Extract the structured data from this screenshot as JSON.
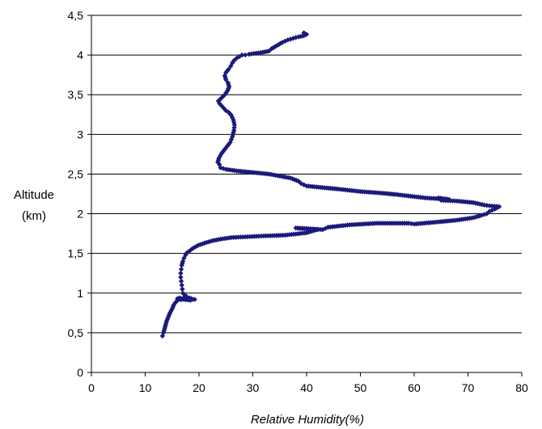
{
  "chart_data": {
    "type": "scatter",
    "title": "",
    "xlabel": "Relative Humidity(%)",
    "ylabel_lines": [
      "Altitude",
      "(km)"
    ],
    "xlim": [
      0,
      80
    ],
    "ylim": [
      0,
      4.5
    ],
    "xticks": [
      "0",
      "10",
      "20",
      "30",
      "40",
      "50",
      "60",
      "70",
      "80"
    ],
    "yticks": [
      "0",
      "0,5",
      "1",
      "1,5",
      "2",
      "2,5",
      "3",
      "3,5",
      "4",
      "4,5"
    ],
    "grid": "horizontal",
    "marker": "diamond",
    "color": "#1a1a7a",
    "series": [
      {
        "x": [
          13.2,
          13.4,
          13.6,
          13.8,
          14.0,
          14.3,
          14.6,
          15.0,
          15.3,
          15.6,
          15.9,
          16.1,
          16.3,
          16.4,
          16.5,
          16.6,
          16.7,
          16.8,
          17.0,
          17.2,
          17.5,
          17.8,
          18.2,
          18.6,
          19.2,
          16.0,
          17.2,
          18.4,
          17.0,
          16.9,
          16.8,
          16.7,
          16.6,
          16.6,
          16.7,
          16.8,
          17.0,
          17.2,
          17.5,
          17.8,
          18.2,
          18.6,
          19.0,
          19.8,
          21.0,
          22.5,
          24.0,
          26.0,
          29.0,
          32.0,
          36.0,
          40.0,
          42.0,
          38.0,
          43.0,
          44.0,
          48.0,
          53.0,
          59.0,
          60.0,
          65.0,
          68.0,
          71.0,
          72.5,
          73.5,
          74.0,
          75.0,
          75.8,
          74.0,
          73.0,
          71.0,
          68.0,
          65.0,
          64.5,
          66.5,
          62.0,
          57.0,
          54.0,
          50.0,
          46.0,
          43.0,
          40.0,
          39.0,
          38.5,
          37.0,
          33.0,
          30.0,
          27.0,
          25.0,
          24.0,
          23.8,
          23.5,
          23.7,
          24.2,
          25.0,
          25.8,
          26.2,
          26.5,
          26.6,
          26.4,
          26.0,
          25.5,
          25.0,
          24.6,
          24.2,
          23.8,
          23.6,
          24.2,
          24.8,
          25.3,
          25.6,
          25.4,
          25.0,
          24.8,
          25.0,
          25.5,
          25.9,
          26.2,
          26.5,
          27.0,
          27.5,
          28.0,
          28.6,
          29.3,
          30.2,
          31.5,
          33.0,
          33.5,
          34.5,
          35.5,
          36.5,
          37.5,
          38.5,
          39.3,
          40.0,
          39.5
        ],
        "y": [
          0.46,
          0.5,
          0.55,
          0.6,
          0.65,
          0.7,
          0.75,
          0.8,
          0.85,
          0.88,
          0.9,
          0.92,
          0.93,
          0.94,
          0.93,
          0.92,
          0.92,
          0.93,
          0.93,
          0.94,
          0.92,
          0.93,
          0.94,
          0.93,
          0.92,
          0.93,
          0.92,
          0.91,
          1.0,
          1.05,
          1.1,
          1.15,
          1.2,
          1.25,
          1.3,
          1.35,
          1.4,
          1.44,
          1.48,
          1.51,
          1.53,
          1.55,
          1.57,
          1.6,
          1.63,
          1.66,
          1.68,
          1.7,
          1.71,
          1.72,
          1.73,
          1.76,
          1.8,
          1.82,
          1.8,
          1.83,
          1.86,
          1.88,
          1.88,
          1.87,
          1.9,
          1.92,
          1.95,
          1.98,
          2.0,
          2.03,
          2.06,
          2.09,
          2.1,
          2.11,
          2.14,
          2.16,
          2.17,
          2.2,
          2.18,
          2.2,
          2.24,
          2.26,
          2.28,
          2.31,
          2.33,
          2.35,
          2.38,
          2.41,
          2.45,
          2.5,
          2.52,
          2.54,
          2.56,
          2.58,
          2.62,
          2.65,
          2.7,
          2.76,
          2.83,
          2.9,
          2.97,
          3.05,
          3.12,
          3.18,
          3.24,
          3.28,
          3.3,
          3.33,
          3.36,
          3.39,
          3.42,
          3.46,
          3.5,
          3.55,
          3.6,
          3.65,
          3.69,
          3.74,
          3.78,
          3.82,
          3.86,
          3.9,
          3.93,
          3.96,
          3.98,
          4.0,
          4.0,
          4.01,
          4.02,
          4.03,
          4.05,
          4.08,
          4.12,
          4.16,
          4.19,
          4.21,
          4.23,
          4.24,
          4.26,
          4.28
        ]
      }
    ]
  }
}
